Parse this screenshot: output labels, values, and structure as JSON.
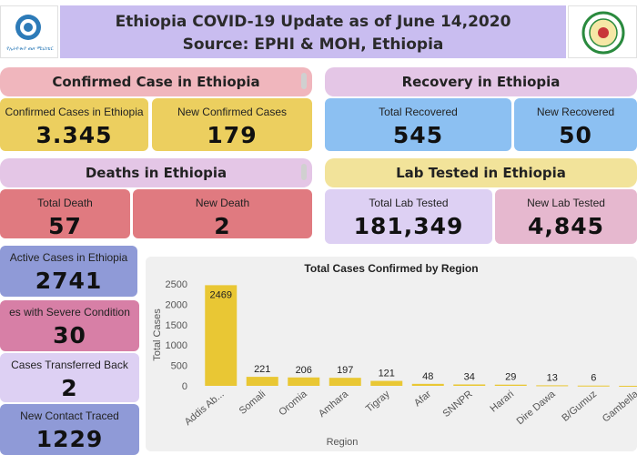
{
  "header": {
    "title_line1": "Ethiopia COVID-19 Update as of June 14,2020",
    "title_line2": "Source: EPHI & MOH, Ethiopia",
    "left_logo_caption": "የኢትዮጵያ ጤና ሚኒስቴር"
  },
  "confirmed": {
    "heading": "Confirmed Case in Ethiopia",
    "total_label": "Confirmed Cases in Ethiopia",
    "total_value": "3.345",
    "new_label": "New Confirmed Cases",
    "new_value": "179"
  },
  "recovery": {
    "heading": "Recovery in Ethiopia",
    "total_label": "Total Recovered",
    "total_value": "545",
    "new_label": "New Recovered",
    "new_value": "50"
  },
  "deaths": {
    "heading": "Deaths in Ethiopia",
    "total_label": "Total Death",
    "total_value": "57",
    "new_label": "New Death",
    "new_value": "2"
  },
  "lab": {
    "heading": "Lab Tested  in Ethiopia",
    "total_label": "Total Lab Tested",
    "total_value": "181,349",
    "new_label": "New Lab Tested",
    "new_value": "4,845"
  },
  "side_cards": [
    {
      "label": "Active Cases in Ethiopia",
      "value": "2741"
    },
    {
      "label": "es with Severe Condition",
      "value": "30"
    },
    {
      "label": "Cases Transferred Back",
      "value": "2"
    },
    {
      "label": "New Contact Traced",
      "value": "1229"
    }
  ],
  "colors": {
    "header_bg": "#c9bdf0",
    "confirmed_head": "#f0b6bd",
    "confirmed_card": "#eccf5f",
    "recovery_head": "#e4c6e6",
    "recovery_card": "#8cc0f2",
    "deaths_head": "#e4c6e6",
    "deaths_card": "#e07a80",
    "lab_head": "#f2e39a",
    "lab_total": "#ddd0f3",
    "lab_new": "#e6b8cf",
    "side_active": "#8f9ad7",
    "side_severe": "#d77fa6",
    "side_transferred": "#ddd0f3",
    "side_contact": "#8f9ad7",
    "bar": "#e9c734"
  },
  "chart_data": {
    "type": "bar",
    "title": "Total Cases Confirmed by Region",
    "xlabel": "Region",
    "ylabel": "Total Cases",
    "ylim": [
      0,
      2500
    ],
    "yticks": [
      0,
      500,
      1000,
      1500,
      2000,
      2500
    ],
    "categories": [
      "Addis Ab...",
      "Somali",
      "Oromia",
      "Amhara",
      "Tigray",
      "Afar",
      "SNNPR",
      "Harari",
      "Dire Dawa",
      "B/Gumuz",
      "Gambella"
    ],
    "values": [
      2469,
      221,
      206,
      197,
      121,
      48,
      34,
      29,
      13,
      6,
      1
    ],
    "data_labels": [
      "2469",
      "221",
      "206",
      "197",
      "121",
      "48",
      "34",
      "29",
      "13",
      "6",
      ""
    ],
    "grid": false
  }
}
